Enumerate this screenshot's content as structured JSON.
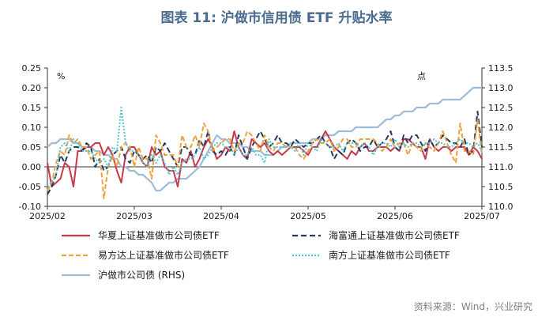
{
  "title": "图表 11: 沪做市信用债 ETF 升贴水率",
  "source": "资料来源：Wind，兴业研究",
  "chart_data": {
    "type": "line",
    "left_unit": "%",
    "right_unit": "点",
    "ylim_left": [
      -0.1,
      0.25
    ],
    "ylim_right": [
      110.0,
      113.5
    ],
    "yticks_left": [
      "-0.10",
      "-0.05",
      "0.00",
      "0.05",
      "0.10",
      "0.15",
      "0.20",
      "0.25"
    ],
    "yticks_right": [
      "110.0",
      "110.5",
      "111.0",
      "111.5",
      "112.0",
      "112.5",
      "113.0",
      "113.5"
    ],
    "xticks": [
      "2025/02",
      "2025/03",
      "2025/04",
      "2025/05",
      "2025/06",
      "2025/07"
    ],
    "n_points": 101,
    "series": [
      {
        "name": "华夏上证基准做市公司债ETF",
        "axis": "left",
        "color": "#c8374a",
        "dash": "none",
        "values": [
          0.01,
          -0.05,
          -0.04,
          -0.03,
          0.01,
          0.0,
          -0.05,
          0.04,
          0.04,
          0.05,
          0.05,
          0.06,
          0.06,
          0.03,
          0.05,
          0.03,
          -0.01,
          -0.04,
          0.03,
          0.05,
          0.05,
          0.03,
          0.01,
          0.0,
          0.05,
          0.03,
          0.04,
          0.0,
          -0.01,
          -0.01,
          -0.05,
          0.02,
          0.01,
          0.04,
          0.0,
          0.02,
          0.05,
          0.07,
          0.05,
          0.02,
          0.03,
          0.05,
          0.04,
          0.09,
          0.05,
          0.03,
          0.02,
          0.07,
          0.06,
          0.05,
          0.06,
          0.04,
          0.03,
          0.04,
          0.03,
          0.04,
          0.05,
          0.05,
          0.05,
          0.04,
          0.03,
          0.05,
          0.05,
          0.07,
          0.09,
          0.07,
          0.05,
          0.04,
          0.03,
          0.02,
          0.04,
          0.03,
          0.05,
          0.06,
          0.04,
          0.04,
          0.05,
          0.05,
          0.05,
          0.04,
          0.05,
          0.04,
          0.07,
          0.07,
          0.06,
          0.05,
          0.05,
          0.02,
          0.07,
          0.05,
          0.04,
          0.05,
          0.05,
          0.04,
          0.05,
          0.05,
          0.05,
          0.03,
          0.05,
          0.04,
          0.02
        ]
      },
      {
        "name": "海富通上证基准做市公司债ETF",
        "axis": "left",
        "color": "#243a5e",
        "dash": "7,4",
        "values": [
          -0.07,
          -0.05,
          -0.02,
          0.03,
          0.01,
          0.04,
          0.05,
          0.05,
          0.04,
          0.06,
          0.05,
          0.0,
          0.02,
          -0.01,
          0.0,
          0.03,
          0.04,
          0.05,
          0.02,
          0.01,
          0.04,
          0.03,
          0.02,
          0.03,
          0.01,
          0.05,
          0.04,
          0.06,
          0.04,
          0.02,
          0.0,
          0.05,
          0.05,
          0.03,
          0.03,
          0.07,
          0.05,
          0.09,
          0.04,
          0.03,
          0.04,
          0.03,
          0.05,
          0.03,
          0.08,
          0.05,
          0.02,
          0.05,
          0.07,
          0.09,
          0.07,
          0.05,
          0.06,
          0.08,
          0.06,
          0.06,
          0.05,
          0.07,
          0.06,
          0.05,
          0.06,
          0.06,
          0.07,
          0.08,
          0.06,
          0.05,
          0.02,
          0.04,
          0.03,
          0.06,
          0.07,
          0.06,
          0.04,
          0.05,
          0.05,
          0.07,
          0.05,
          0.06,
          0.07,
          0.09,
          0.05,
          0.04,
          0.08,
          0.06,
          0.08,
          0.08,
          0.06,
          0.04,
          0.07,
          0.05,
          0.06,
          0.08,
          0.07,
          0.06,
          0.06,
          0.05,
          0.07,
          0.03,
          0.04,
          0.14,
          0.05
        ]
      },
      {
        "name": "易方达上证基准做市公司债ETF",
        "axis": "left",
        "color": "#f0a03c",
        "dash": "6,3",
        "values": [
          -0.06,
          -0.04,
          0.01,
          0.04,
          0.03,
          0.08,
          0.06,
          0.07,
          0.05,
          0.05,
          0.02,
          0.03,
          0.04,
          -0.08,
          0.0,
          0.03,
          0.0,
          0.05,
          0.06,
          0.05,
          0.0,
          0.05,
          0.02,
          0.02,
          -0.03,
          0.08,
          0.06,
          0.03,
          0.03,
          0.03,
          0.0,
          0.08,
          0.05,
          0.05,
          0.08,
          0.05,
          0.11,
          0.09,
          0.04,
          0.05,
          0.06,
          0.07,
          0.07,
          0.04,
          0.06,
          0.06,
          0.09,
          0.08,
          0.06,
          0.04,
          0.08,
          0.05,
          0.04,
          0.06,
          0.06,
          0.05,
          0.05,
          0.05,
          0.03,
          0.02,
          0.04,
          0.06,
          0.07,
          0.06,
          0.06,
          0.07,
          0.04,
          0.05,
          0.07,
          0.07,
          0.05,
          0.05,
          0.07,
          0.07,
          0.07,
          0.07,
          0.06,
          0.04,
          0.05,
          0.07,
          0.05,
          0.06,
          0.06,
          0.03,
          0.06,
          0.05,
          0.04,
          0.06,
          0.05,
          0.04,
          0.06,
          0.09,
          0.06,
          0.03,
          0.01,
          0.11,
          0.04,
          0.04,
          0.03,
          0.12,
          0.03
        ]
      },
      {
        "name": "南方上证基准做市公司债ETF",
        "axis": "left",
        "color": "#4fc3d0",
        "dash": "2,2",
        "values": [
          -0.05,
          -0.04,
          -0.02,
          0.05,
          0.06,
          0.04,
          0.07,
          0.06,
          0.04,
          0.04,
          0.04,
          0.02,
          0.01,
          0.02,
          0.0,
          0.05,
          0.04,
          0.15,
          0.06,
          0.04,
          0.04,
          0.03,
          0.01,
          0.0,
          0.03,
          0.01,
          0.03,
          0.01,
          -0.02,
          0.0,
          -0.02,
          0.01,
          0.02,
          0.02,
          0.03,
          0.05,
          0.02,
          0.03,
          0.05,
          0.06,
          0.06,
          0.05,
          0.05,
          0.03,
          0.05,
          0.03,
          0.03,
          0.05,
          0.03,
          0.03,
          0.01,
          0.07,
          0.05,
          0.05,
          0.05,
          0.05,
          0.05,
          0.04,
          0.06,
          0.03,
          0.06,
          0.05,
          0.04,
          0.07,
          0.06,
          0.05,
          0.05,
          0.06,
          0.04,
          0.06,
          0.06,
          0.06,
          0.05,
          0.06,
          0.05,
          0.03,
          0.05,
          0.06,
          0.06,
          0.05,
          0.07,
          0.05,
          0.06,
          0.05,
          0.06,
          0.06,
          0.05,
          0.06,
          0.06,
          0.07,
          0.06,
          0.06,
          0.05,
          0.05,
          0.06,
          0.07,
          0.06,
          0.06,
          0.05,
          0.06,
          0.04
        ]
      },
      {
        "name": "沪做市公司债 (RHS)",
        "axis": "right",
        "color": "#9fbcd8",
        "dash": "none",
        "values": [
          111.5,
          111.6,
          111.6,
          111.7,
          111.7,
          111.7,
          111.6,
          111.6,
          111.5,
          111.5,
          111.5,
          111.4,
          111.4,
          111.3,
          111.3,
          111.2,
          111.2,
          111.0,
          111.0,
          110.9,
          110.9,
          110.8,
          110.8,
          110.7,
          110.6,
          110.4,
          110.4,
          110.5,
          110.6,
          110.6,
          110.7,
          110.7,
          110.7,
          110.8,
          110.9,
          111.0,
          111.2,
          111.4,
          111.6,
          111.8,
          111.7,
          111.7,
          111.6,
          111.6,
          111.6,
          111.5,
          111.5,
          111.4,
          111.4,
          111.4,
          111.3,
          111.3,
          111.3,
          111.4,
          111.5,
          111.5,
          111.6,
          111.6,
          111.6,
          111.6,
          111.6,
          111.7,
          111.7,
          111.7,
          111.8,
          111.8,
          111.8,
          111.9,
          111.9,
          111.9,
          111.9,
          112.0,
          112.0,
          112.0,
          112.0,
          112.0,
          112.0,
          112.1,
          112.2,
          112.2,
          112.3,
          112.3,
          112.4,
          112.4,
          112.4,
          112.5,
          112.5,
          112.5,
          112.6,
          112.6,
          112.6,
          112.7,
          112.7,
          112.7,
          112.7,
          112.7,
          112.8,
          112.9,
          113.0,
          113.0,
          113.0
        ]
      }
    ]
  }
}
